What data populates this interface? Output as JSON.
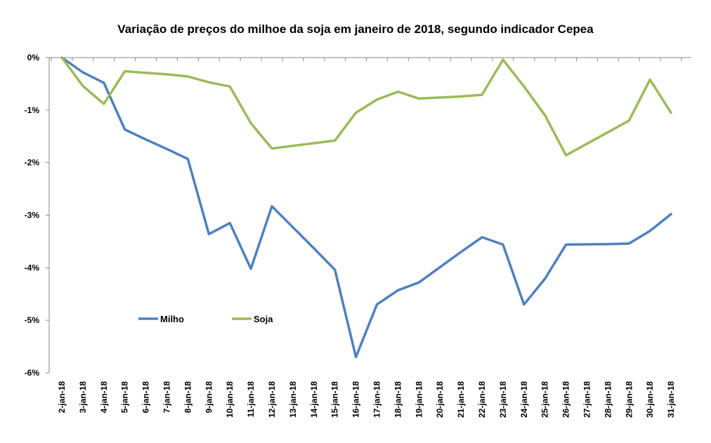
{
  "chart_data": {
    "type": "line",
    "title": "Variação de preços do milhoe da soja em janeiro de 2018,  segundo indicador Cepea",
    "xlabel": "",
    "ylabel": "",
    "ylim": [
      -6,
      0
    ],
    "y_tick_labels": [
      "0%",
      "-1%",
      "-2%",
      "-3%",
      "-4%",
      "-5%",
      "-6%"
    ],
    "y_tick_values": [
      0,
      -1,
      -2,
      -3,
      -4,
      -5,
      -6
    ],
    "grid": false,
    "legend_position": "bottom-left",
    "categories": [
      "2-jan-18",
      "3-jan-18",
      "4-jan-18",
      "5-jan-18",
      "6-jan-18",
      "7-jan-18",
      "8-jan-18",
      "9-jan-18",
      "10-jan-18",
      "11-jan-18",
      "12-jan-18",
      "13-jan-18",
      "14-jan-18",
      "15-jan-18",
      "16-jan-18",
      "17-jan-18",
      "18-jan-18",
      "19-jan-18",
      "20-jan-18",
      "21-jan-18",
      "22-jan-18",
      "23-jan-18",
      "24-jan-18",
      "25-jan-18",
      "26-jan-18",
      "27-jan-18",
      "28-jan-18",
      "29-jan-18",
      "30-jan-18",
      "31-jan-18"
    ],
    "series": [
      {
        "name": "Milho",
        "color": "#4f81bd",
        "values": [
          0.0,
          -0.28,
          -0.48,
          -1.37,
          -1.56,
          -1.74,
          -1.93,
          -3.36,
          -3.15,
          -4.02,
          -2.83,
          -3.23,
          -3.63,
          -4.04,
          -5.7,
          -4.7,
          -4.43,
          -4.28,
          -3.99,
          -3.7,
          -3.42,
          -3.56,
          -4.7,
          -4.21,
          -3.56,
          -3.555,
          -3.55,
          -3.54,
          -3.3,
          -2.98
        ]
      },
      {
        "name": "Soja",
        "color": "#9bbb59",
        "values": [
          0.0,
          -0.54,
          -0.88,
          -0.26,
          -0.29,
          -0.32,
          -0.36,
          -0.47,
          -0.55,
          -1.25,
          -1.73,
          -1.68,
          -1.63,
          -1.58,
          -1.05,
          -0.8,
          -0.65,
          -0.78,
          -0.76,
          -0.74,
          -0.71,
          -0.04,
          -0.55,
          -1.1,
          -1.86,
          -1.64,
          -1.42,
          -1.2,
          -0.42,
          -1.05
        ]
      }
    ]
  }
}
